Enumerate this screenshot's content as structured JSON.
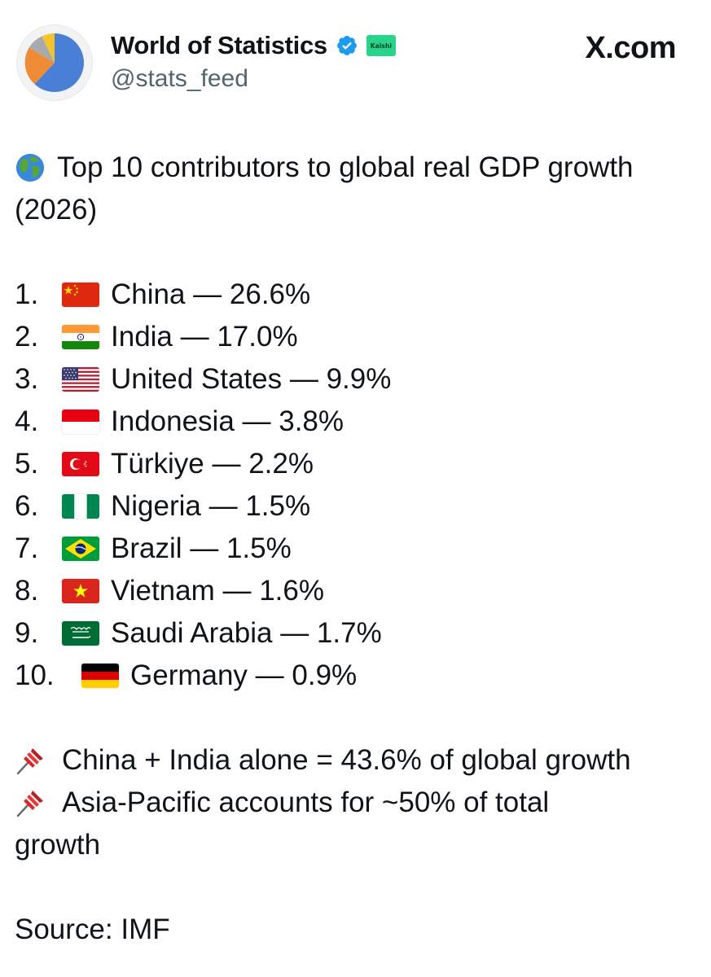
{
  "header": {
    "display_name": "World of Statistics",
    "handle": "@stats_feed",
    "affiliate_badge_text": "Kaishi",
    "site_brand": "X.com",
    "avatar_icon": "pie-chart-avatar",
    "verified_icon": "verified-badge-icon",
    "colors": {
      "verified": "#1d9bf0",
      "affiliate": "#28d48a",
      "handle": "#536471"
    }
  },
  "tweet": {
    "headline_icon": "globe-emoji",
    "headline_line1": "Top 10 contributors to global real GDP growth",
    "headline_line2": "(2026)",
    "list": [
      {
        "rank": "1.",
        "flag": "china-flag",
        "text": "China — 26.6%"
      },
      {
        "rank": "2.",
        "flag": "india-flag",
        "text": "India — 17.0%"
      },
      {
        "rank": "3.",
        "flag": "us-flag",
        "text": "United States — 9.9%"
      },
      {
        "rank": "4.",
        "flag": "indonesia-flag",
        "text": "Indonesia — 3.8%"
      },
      {
        "rank": "5.",
        "flag": "turkiye-flag",
        "text": "Türkiye — 2.2%"
      },
      {
        "rank": "6.",
        "flag": "nigeria-flag",
        "text": "Nigeria — 1.5%"
      },
      {
        "rank": "7.",
        "flag": "brazil-flag",
        "text": "Brazil — 1.5%"
      },
      {
        "rank": "8.",
        "flag": "vietnam-flag",
        "text": "Vietnam — 1.6%"
      },
      {
        "rank": "9.",
        "flag": "saudi-arabia-flag",
        "text": "Saudi Arabia — 1.7%"
      },
      {
        "rank": "10.",
        "flag": "germany-flag",
        "text": "Germany — 0.9%"
      }
    ],
    "note1": "China + India alone = 43.6% of global growth",
    "note2_line1": "Asia-Pacific accounts for ~50% of total",
    "note2_line2": "growth",
    "note_icon": "pushpin-emoji",
    "source": "Source: IMF"
  }
}
